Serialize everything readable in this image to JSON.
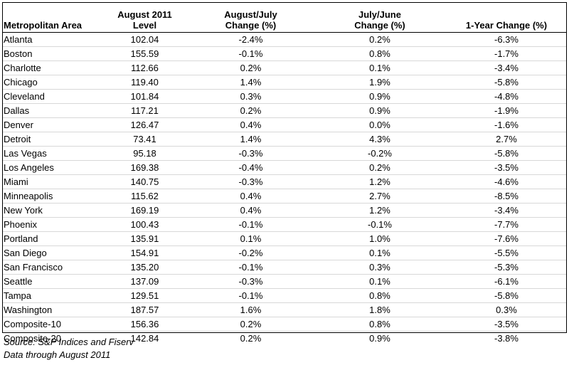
{
  "chart_data": {
    "type": "table",
    "columns": [
      "Metropolitan Area",
      "August 2011 Level",
      "August/July Change (%)",
      "July/June Change (%)",
      "1-Year Change (%)"
    ],
    "rows": [
      [
        "Atlanta",
        "102.04",
        "-2.4%",
        "0.2%",
        "-6.3%"
      ],
      [
        "Boston",
        "155.59",
        "-0.1%",
        "0.8%",
        "-1.7%"
      ],
      [
        "Charlotte",
        "112.66",
        "0.2%",
        "0.1%",
        "-3.4%"
      ],
      [
        "Chicago",
        "119.40",
        "1.4%",
        "1.9%",
        "-5.8%"
      ],
      [
        "Cleveland",
        "101.84",
        "0.3%",
        "0.9%",
        "-4.8%"
      ],
      [
        "Dallas",
        "117.21",
        "0.2%",
        "0.9%",
        "-1.9%"
      ],
      [
        "Denver",
        "126.47",
        "0.4%",
        "0.0%",
        "-1.6%"
      ],
      [
        "Detroit",
        "73.41",
        "1.4%",
        "4.3%",
        "2.7%"
      ],
      [
        "Las Vegas",
        "95.18",
        "-0.3%",
        "-0.2%",
        "-5.8%"
      ],
      [
        "Los Angeles",
        "169.38",
        "-0.4%",
        "0.2%",
        "-3.5%"
      ],
      [
        "Miami",
        "140.75",
        "-0.3%",
        "1.2%",
        "-4.6%"
      ],
      [
        "Minneapolis",
        "115.62",
        "0.4%",
        "2.7%",
        "-8.5%"
      ],
      [
        "New York",
        "169.19",
        "0.4%",
        "1.2%",
        "-3.4%"
      ],
      [
        "Phoenix",
        "100.43",
        "-0.1%",
        "-0.1%",
        "-7.7%"
      ],
      [
        "Portland",
        "135.91",
        "0.1%",
        "1.0%",
        "-7.6%"
      ],
      [
        "San Diego",
        "154.91",
        "-0.2%",
        "0.1%",
        "-5.5%"
      ],
      [
        "San Francisco",
        "135.20",
        "-0.1%",
        "0.3%",
        "-5.3%"
      ],
      [
        "Seattle",
        "137.09",
        "-0.3%",
        "0.1%",
        "-6.1%"
      ],
      [
        "Tampa",
        "129.51",
        "-0.1%",
        "0.8%",
        "-5.8%"
      ],
      [
        "Washington",
        "187.57",
        "1.6%",
        "1.8%",
        "0.3%"
      ],
      [
        "Composite-10",
        "156.36",
        "0.2%",
        "0.8%",
        "-3.5%"
      ],
      [
        "Composite-20",
        "142.84",
        "0.2%",
        "0.9%",
        "-3.8%"
      ]
    ]
  },
  "table": {
    "headers": {
      "metro": {
        "line2": "Metropolitan Area"
      },
      "level": {
        "line1": "August 2011",
        "line2": "Level"
      },
      "aug_jul": {
        "line1": "August/July",
        "line2": "Change (%)"
      },
      "jul_jun": {
        "line1": "July/June",
        "line2": "Change (%)"
      },
      "year": {
        "line2": "1-Year Change (%)"
      }
    }
  },
  "notes": {
    "source": "Source: S&P Indices and Fiserv",
    "data_through": "Data through August 2011"
  },
  "colors": {
    "text": "#000000",
    "background": "#ffffff",
    "row_divider": "#d8d8d8",
    "frame": "#000000"
  }
}
